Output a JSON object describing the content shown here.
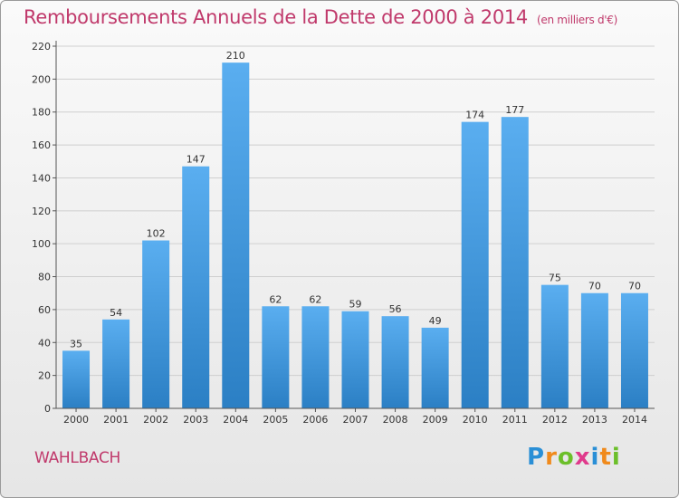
{
  "header": {
    "title": "Remboursements Annuels de la Dette de 2000 à 2014",
    "unit": "(en milliers d'€)"
  },
  "footer": {
    "commune": "WAHLBACH",
    "logo": {
      "letters": [
        "P",
        "r",
        "o",
        "x",
        "i",
        "t",
        "i"
      ],
      "colors": [
        "#2a8fd6",
        "#f08a1c",
        "#6cbf2a",
        "#e03a8c",
        "#2a8fd6",
        "#f08a1c",
        "#6cbf2a"
      ]
    }
  },
  "chart_data": {
    "type": "bar",
    "title": "Remboursements Annuels de la Dette de 2000 à 2014",
    "xlabel": "",
    "ylabel": "",
    "categories": [
      "2000",
      "2001",
      "2002",
      "2003",
      "2004",
      "2005",
      "2006",
      "2007",
      "2008",
      "2009",
      "2010",
      "2011",
      "2012",
      "2013",
      "2014"
    ],
    "values": [
      35,
      54,
      102,
      147,
      210,
      62,
      62,
      59,
      56,
      49,
      174,
      177,
      75,
      70,
      70
    ],
    "ylim": [
      0,
      220
    ],
    "yticks": [
      0,
      20,
      40,
      60,
      80,
      100,
      120,
      140,
      160,
      180,
      200,
      220
    ],
    "grid": true,
    "colors": {
      "bar_top": "#5aaef0",
      "bar_bottom": "#2b7fc4",
      "grid": "#cfcfcf",
      "axis": "#555555"
    }
  }
}
